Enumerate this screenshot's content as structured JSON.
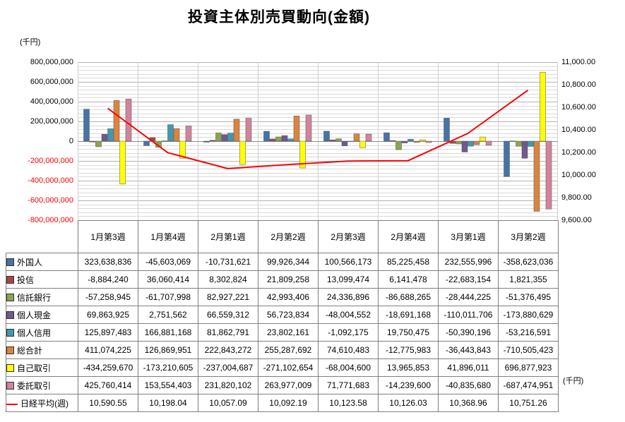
{
  "title": "投資主体別売買動向(金額)",
  "left_axis": {
    "unit": "(千円)",
    "labels": [
      "800,000,000",
      "600,000,000",
      "400,000,000",
      "200,000,000",
      "0",
      "-200,000,000",
      "-400,000,000",
      "-600,000,000",
      "-800,000,000"
    ],
    "min": -800000000,
    "max": 800000000,
    "major_unit": 200000000,
    "minor_unit": 40000000
  },
  "right_axis": {
    "unit": "(千円)",
    "labels": [
      "11,000.00",
      "10,800.00",
      "10,600.00",
      "10,400.00",
      "10,200.00",
      "10,000.00",
      "9,800.00",
      "9,600.00"
    ],
    "min": 9600,
    "max": 11000,
    "major_unit": 200
  },
  "chart_data": {
    "type": "bar",
    "title": "投資主体別売買動向(金額)",
    "categories": [
      "1月第3週",
      "1月第4週",
      "2月第1週",
      "2月第2週",
      "2月第3週",
      "2月第4週",
      "3月第1週",
      "3月第2週"
    ],
    "left_ylim": [
      -800000000,
      800000000
    ],
    "right_ylim": [
      9600,
      11000
    ],
    "grid": true,
    "legend_position": "table-left",
    "series": [
      {
        "name": "外国人",
        "type": "bar",
        "color": "#4573A7",
        "values": [
          323638836,
          -45603069,
          -10731621,
          99926344,
          100566173,
          85225458,
          232555996,
          -358623036
        ]
      },
      {
        "name": "投信",
        "type": "bar",
        "color": "#AA4644",
        "values": [
          -8884240,
          36060414,
          8302824,
          21809258,
          13099474,
          6141478,
          -22683154,
          1821355
        ]
      },
      {
        "name": "信託銀行",
        "type": "bar",
        "color": "#89A54E",
        "values": [
          -57258945,
          -61707998,
          82927221,
          42993406,
          24336896,
          -86688265,
          -28444225,
          -51376495
        ]
      },
      {
        "name": "個人現金",
        "type": "bar",
        "color": "#71588F",
        "values": [
          69863925,
          2751562,
          66559312,
          56723834,
          -48004552,
          -18691168,
          -110011706,
          -173880629
        ]
      },
      {
        "name": "個人信用",
        "type": "bar",
        "color": "#4298AF",
        "values": [
          125897483,
          166881168,
          81862791,
          23802161,
          -1092175,
          19750475,
          -50390196,
          -53216591
        ]
      },
      {
        "name": "総合計",
        "type": "bar",
        "color": "#DB843D",
        "values": [
          411074225,
          126869951,
          222843272,
          255287692,
          74610483,
          -12775983,
          -36443843,
          -710505423
        ]
      },
      {
        "name": "自己取引",
        "type": "bar",
        "color": "#FFFF00",
        "values": [
          -434259670,
          -173210605,
          -237004687,
          -271102654,
          -68004600,
          13965853,
          41896011,
          696877923
        ]
      },
      {
        "name": "委託取引",
        "type": "bar",
        "color": "#D1849B",
        "values": [
          425760414,
          153554403,
          231820102,
          263977009,
          71771683,
          -14239600,
          -40835680,
          -687474951
        ]
      },
      {
        "name": "日経平均(週)",
        "type": "line",
        "axis": "right",
        "color": "#FF0000",
        "values": [
          10590.55,
          10198.04,
          10057.09,
          10092.19,
          10123.58,
          10126.03,
          10368.96,
          10751.26
        ]
      }
    ]
  },
  "table": {
    "rows": [
      {
        "values": [
          "323,638,836",
          "-45,603,069",
          "-10,731,621",
          "99,926,344",
          "100,566,173",
          "85,225,458",
          "232,555,996",
          "-358,623,036"
        ]
      },
      {
        "values": [
          "-8,884,240",
          "36,060,414",
          "8,302,824",
          "21,809,258",
          "13,099,474",
          "6,141,478",
          "-22,683,154",
          "1,821,355"
        ]
      },
      {
        "values": [
          "-57,258,945",
          "-61,707,998",
          "82,927,221",
          "42,993,406",
          "24,336,896",
          "-86,688,265",
          "-28,444,225",
          "-51,376,495"
        ]
      },
      {
        "values": [
          "69,863,925",
          "2,751,562",
          "66,559,312",
          "56,723,834",
          "-48,004,552",
          "-18,691,168",
          "-110,011,706",
          "-173,880,629"
        ]
      },
      {
        "values": [
          "125,897,483",
          "166,881,168",
          "81,862,791",
          "23,802,161",
          "-1,092,175",
          "19,750,475",
          "-50,390,196",
          "-53,216,591"
        ]
      },
      {
        "values": [
          "411,074,225",
          "126,869,951",
          "222,843,272",
          "255,287,692",
          "74,610,483",
          "-12,775,983",
          "-36,443,843",
          "-710,505,423"
        ]
      },
      {
        "values": [
          "-434,259,670",
          "-173,210,605",
          "-237,004,687",
          "-271,102,654",
          "-68,004,600",
          "13,965,853",
          "41,896,011",
          "696,877,923"
        ]
      },
      {
        "values": [
          "425,760,414",
          "153,554,403",
          "231,820,102",
          "263,977,009",
          "71,771,683",
          "-14,239,600",
          "-40,835,680",
          "-687,474,951"
        ]
      },
      {
        "values": [
          "10,590.55",
          "10,198.04",
          "10,057.09",
          "10,092.19",
          "10,123.58",
          "10,126.03",
          "10,368.96",
          "10,751.26"
        ]
      }
    ]
  }
}
